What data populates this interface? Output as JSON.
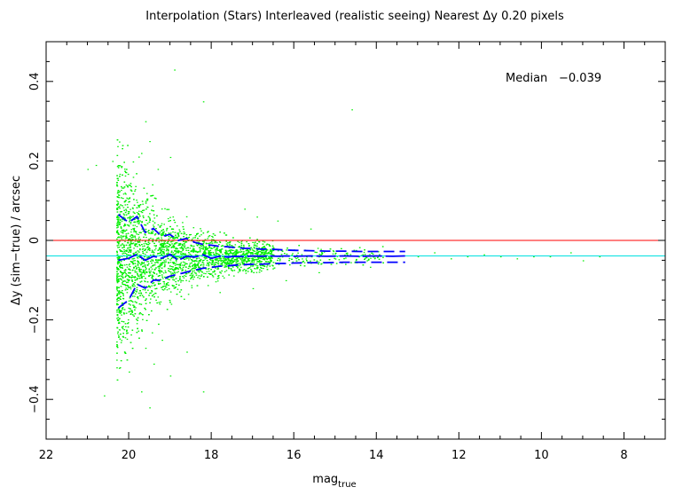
{
  "chart_data": {
    "type": "scatter",
    "title": "Interpolation (Stars) Interleaved (realistic seeing) Nearest  Δy 0.20 pixels",
    "xlabel": "mag",
    "xlabel_sub": "true",
    "ylabel": "Δy (sim−true) / arcsec",
    "xlim": [
      22,
      7
    ],
    "ylim": [
      -0.5,
      0.5
    ],
    "xticks": [
      22,
      20,
      18,
      16,
      14,
      12,
      10,
      8
    ],
    "xtick_labels": [
      "22",
      "20",
      "18",
      "16",
      "14",
      "12",
      "10",
      "8"
    ],
    "yticks": [
      -0.4,
      -0.2,
      0,
      0.2,
      0.4
    ],
    "ytick_labels": [
      "−0.4",
      "−0.2",
      "0",
      "0.2",
      "0.4"
    ],
    "annotation": {
      "label": "Median",
      "value": "−0.039"
    },
    "reference_lines": [
      {
        "y": 0,
        "color": "#ff0000"
      },
      {
        "y": -0.039,
        "color": "#00e0e0"
      }
    ],
    "median_curve": {
      "color": "#0000ff",
      "x": [
        20.25,
        20.0,
        19.8,
        19.6,
        19.4,
        19.2,
        19.0,
        18.8,
        18.6,
        18.4,
        18.2,
        18.0,
        17.8,
        17.6,
        17.4,
        17.2,
        17.0,
        16.8,
        16.6,
        16.4,
        16.2,
        16.0,
        15.6,
        15.2,
        14.8,
        14.4,
        14.0,
        13.6,
        13.3
      ],
      "y": [
        -0.05,
        -0.045,
        -0.035,
        -0.05,
        -0.04,
        -0.045,
        -0.035,
        -0.05,
        -0.04,
        -0.042,
        -0.036,
        -0.045,
        -0.04,
        -0.042,
        -0.04,
        -0.041,
        -0.039,
        -0.04,
        -0.039,
        -0.04,
        -0.039,
        -0.04,
        -0.039,
        -0.04,
        -0.039,
        -0.04,
        -0.039,
        -0.04,
        -0.039
      ]
    },
    "upper_band": {
      "color": "#0000ff",
      "x": [
        20.25,
        20.0,
        19.8,
        19.6,
        19.4,
        19.2,
        19.0,
        18.8,
        18.6,
        18.4,
        18.2,
        18.0,
        17.8,
        17.6,
        17.4,
        17.2,
        17.0,
        16.8,
        16.6,
        16.4,
        16.2,
        16.0,
        15.6,
        15.2,
        14.8,
        14.4,
        14.0,
        13.6,
        13.3
      ],
      "y": [
        0.065,
        0.045,
        0.06,
        0.02,
        0.03,
        0.01,
        0.015,
        0.0,
        0.005,
        -0.005,
        -0.01,
        -0.012,
        -0.015,
        -0.016,
        -0.018,
        -0.02,
        -0.02,
        -0.022,
        -0.022,
        -0.023,
        -0.024,
        -0.025,
        -0.026,
        -0.027,
        -0.027,
        -0.028,
        -0.028,
        -0.028,
        -0.028
      ]
    },
    "lower_band": {
      "color": "#0000ff",
      "x": [
        20.25,
        20.0,
        19.8,
        19.6,
        19.4,
        19.2,
        19.0,
        18.8,
        18.6,
        18.4,
        18.2,
        18.0,
        17.8,
        17.6,
        17.4,
        17.2,
        17.0,
        16.8,
        16.6,
        16.4,
        16.2,
        16.0,
        15.6,
        15.2,
        14.8,
        14.4,
        14.0,
        13.6,
        13.3
      ],
      "y": [
        -0.17,
        -0.15,
        -0.11,
        -0.12,
        -0.1,
        -0.1,
        -0.09,
        -0.085,
        -0.08,
        -0.075,
        -0.07,
        -0.068,
        -0.065,
        -0.064,
        -0.062,
        -0.061,
        -0.06,
        -0.06,
        -0.059,
        -0.058,
        -0.058,
        -0.057,
        -0.056,
        -0.056,
        -0.055,
        -0.055,
        -0.055,
        -0.055,
        -0.055
      ]
    },
    "scatter_color": "#00ee00",
    "scatter_points": [
      [
        20.1,
        0.12
      ],
      [
        19.9,
        0.16
      ],
      [
        19.7,
        0.22
      ],
      [
        19.5,
        0.25
      ],
      [
        19.3,
        0.18
      ],
      [
        19.0,
        0.21
      ],
      [
        18.9,
        0.43
      ],
      [
        18.2,
        0.35
      ],
      [
        19.6,
        0.3
      ],
      [
        20.4,
        0.2
      ],
      [
        20.8,
        0.19
      ],
      [
        21.0,
        0.18
      ],
      [
        19.8,
        -0.22
      ],
      [
        19.6,
        -0.27
      ],
      [
        19.4,
        -0.31
      ],
      [
        19.2,
        -0.25
      ],
      [
        19.0,
        -0.34
      ],
      [
        18.6,
        -0.28
      ],
      [
        18.2,
        -0.38
      ],
      [
        19.5,
        -0.42
      ],
      [
        20.0,
        -0.33
      ],
      [
        20.3,
        -0.3
      ],
      [
        19.7,
        -0.38
      ],
      [
        20.6,
        -0.39
      ],
      [
        17.2,
        0.08
      ],
      [
        16.9,
        0.06
      ],
      [
        16.4,
        0.05
      ],
      [
        15.6,
        0.03
      ],
      [
        14.6,
        0.33
      ],
      [
        17.8,
        -0.13
      ],
      [
        17.0,
        -0.12
      ],
      [
        16.2,
        -0.1
      ],
      [
        15.4,
        -0.08
      ],
      [
        13.0,
        -0.04
      ],
      [
        12.6,
        -0.03
      ],
      [
        12.2,
        -0.045
      ],
      [
        11.8,
        -0.04
      ],
      [
        11.4,
        -0.035
      ],
      [
        11.0,
        -0.04
      ],
      [
        10.6,
        -0.045
      ],
      [
        10.2,
        -0.04
      ],
      [
        9.8,
        -0.04
      ],
      [
        9.3,
        -0.03
      ],
      [
        9.0,
        -0.05
      ],
      [
        8.6,
        -0.04
      ]
    ]
  }
}
